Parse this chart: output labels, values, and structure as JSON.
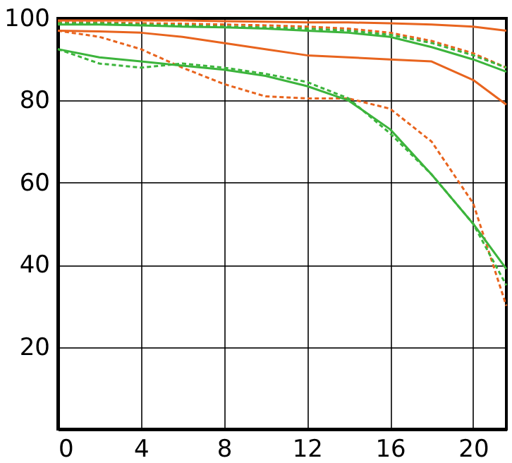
{
  "chart_data": {
    "type": "line",
    "x": [
      0,
      2,
      4,
      6,
      8,
      10,
      12,
      14,
      16,
      18,
      20,
      21.6
    ],
    "xlim": [
      0,
      21.6
    ],
    "xticks": [
      0,
      4,
      8,
      12,
      16,
      20
    ],
    "ylim": [
      0,
      100
    ],
    "yticks": [
      20,
      40,
      60,
      80,
      100
    ],
    "grid": true,
    "marker": "none",
    "series": [
      {
        "color": "#e8641e",
        "line_style": "solid",
        "values": [
          99.5,
          99.5,
          99.5,
          99.5,
          99.3,
          99.2,
          99,
          99,
          98.8,
          98.5,
          98,
          97
        ]
      },
      {
        "color": "#e8641e",
        "line_style": "dashed",
        "values": [
          99,
          99,
          98.8,
          98.7,
          98.5,
          98.3,
          98,
          97.5,
          96.5,
          94.5,
          91.5,
          88
        ]
      },
      {
        "color": "#3cb43c",
        "line_style": "solid",
        "values": [
          98.5,
          98.5,
          98.3,
          98,
          97.8,
          97.5,
          97,
          96.5,
          95.5,
          93,
          90,
          87
        ]
      },
      {
        "color": "#3cb43c",
        "line_style": "dashed",
        "values": [
          98.8,
          98.8,
          98.5,
          98.3,
          98,
          97.8,
          97.5,
          97,
          96,
          94,
          91,
          88
        ]
      },
      {
        "color": "#e8641e",
        "line_style": "solid",
        "values": [
          97,
          96.8,
          96.5,
          95.5,
          94,
          92.5,
          91,
          90.5,
          90,
          89.5,
          85,
          79
        ]
      },
      {
        "color": "#e8641e",
        "line_style": "dashed",
        "values": [
          97,
          95.5,
          92.5,
          88,
          84,
          81,
          80.5,
          80.5,
          78,
          70,
          55,
          30
        ]
      },
      {
        "color": "#3cb43c",
        "line_style": "solid",
        "values": [
          92.5,
          90.5,
          89.5,
          88.5,
          87.5,
          86,
          83.5,
          80,
          73,
          62,
          50,
          39
        ]
      },
      {
        "color": "#3cb43c",
        "line_style": "dashed",
        "values": [
          92.5,
          89,
          88,
          89,
          88,
          86.5,
          84.5,
          80.5,
          72,
          62,
          50,
          35
        ]
      }
    ]
  }
}
